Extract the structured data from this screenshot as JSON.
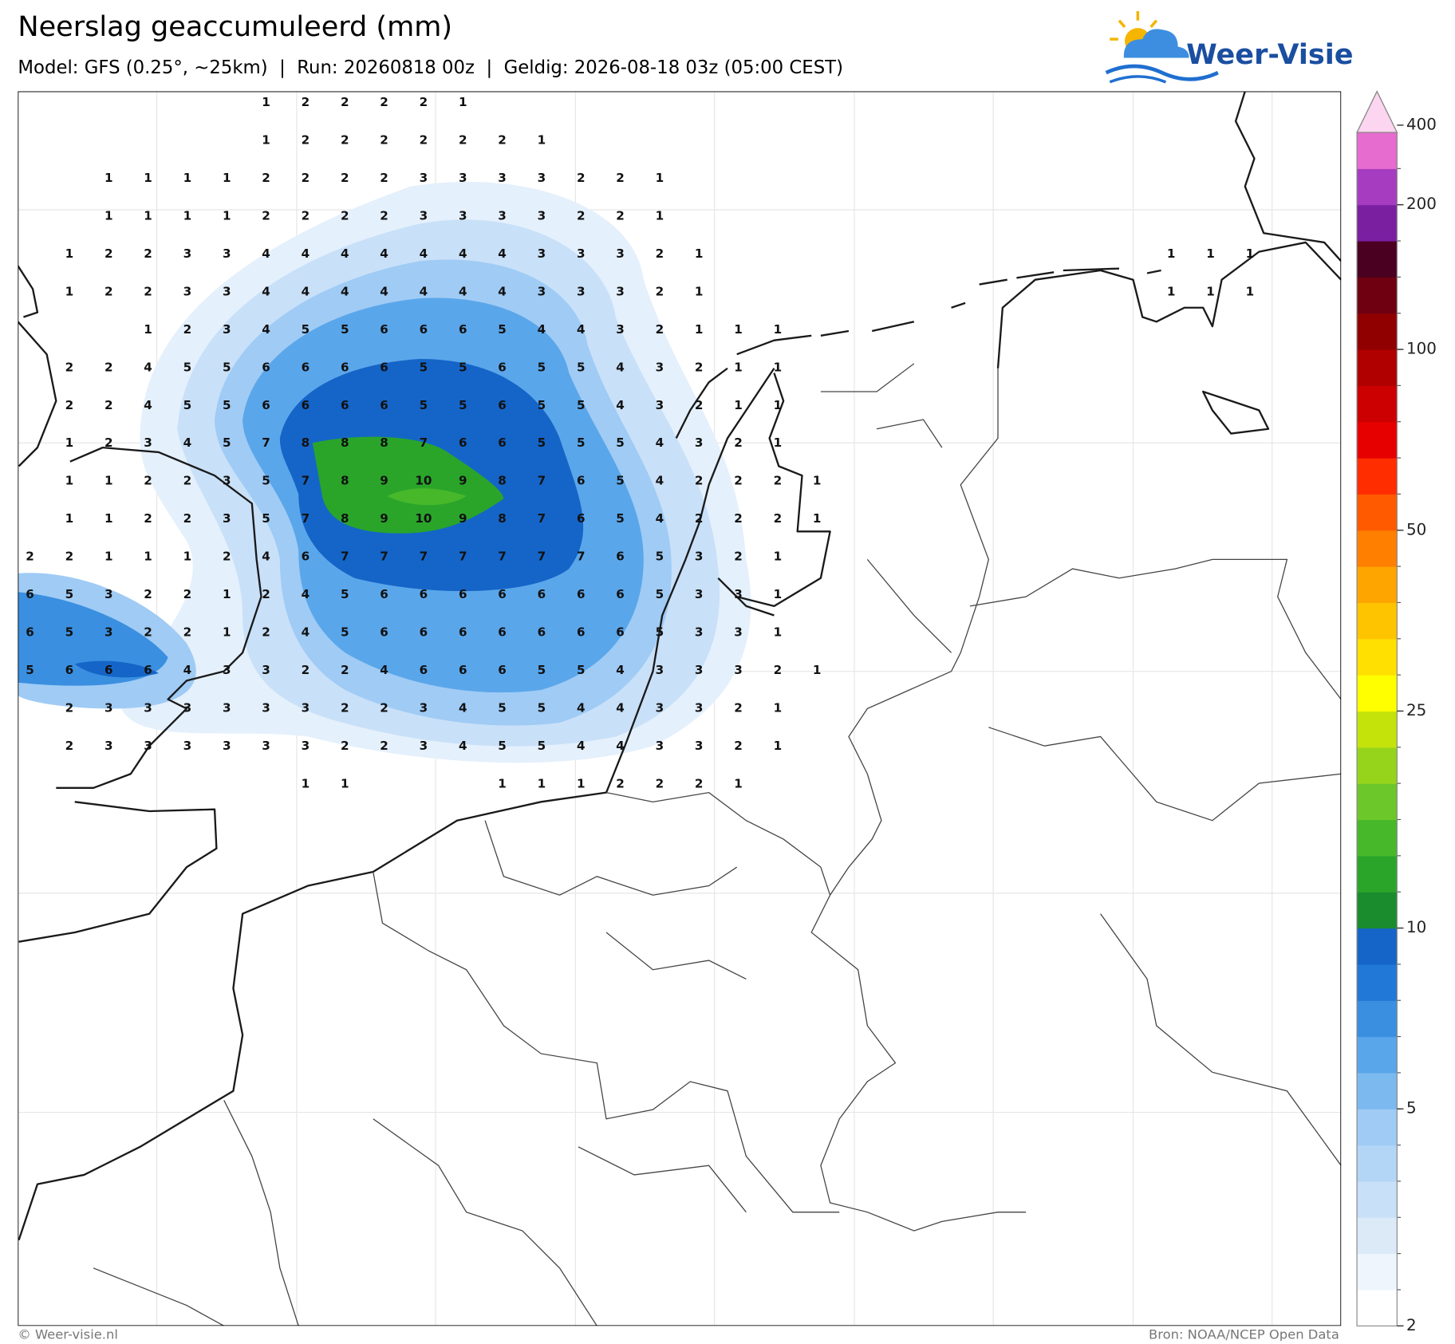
{
  "header": {
    "title": "Neerslag geaccumuleerd (mm)",
    "subtitle": "Model: GFS (0.25°, ~25km)  |  Run: 20260818 00z  |  Geldig: 2026-08-18 03z (05:00 CEST)"
  },
  "logo": {
    "text": "Weer-Visie"
  },
  "map": {
    "grid_rows": [
      [
        null,
        null,
        null,
        null,
        null,
        null,
        1,
        2,
        2,
        2,
        2,
        1
      ],
      [
        null,
        null,
        null,
        null,
        null,
        null,
        1,
        2,
        2,
        2,
        2,
        2,
        2,
        1
      ],
      [
        null,
        null,
        1,
        1,
        1,
        1,
        2,
        2,
        2,
        2,
        3,
        3,
        3,
        3,
        2,
        2,
        1
      ],
      [
        null,
        null,
        1,
        1,
        1,
        1,
        2,
        2,
        2,
        2,
        3,
        3,
        3,
        3,
        2,
        2,
        1
      ],
      [
        null,
        1,
        2,
        2,
        3,
        3,
        4,
        4,
        4,
        4,
        4,
        4,
        4,
        3,
        3,
        3,
        2,
        1,
        null,
        null,
        null,
        null,
        null,
        null,
        null,
        null,
        null,
        null,
        null,
        1,
        1,
        1
      ],
      [
        null,
        1,
        2,
        2,
        3,
        3,
        4,
        4,
        4,
        4,
        4,
        4,
        4,
        3,
        3,
        3,
        2,
        1,
        null,
        null,
        null,
        null,
        null,
        null,
        null,
        null,
        null,
        null,
        null,
        1,
        1,
        1
      ],
      [
        null,
        null,
        null,
        1,
        2,
        3,
        4,
        5,
        5,
        6,
        6,
        6,
        5,
        4,
        4,
        3,
        2,
        1,
        1,
        1
      ],
      [
        null,
        2,
        2,
        4,
        5,
        5,
        6,
        6,
        6,
        6,
        5,
        5,
        6,
        5,
        5,
        4,
        3,
        2,
        1,
        1
      ],
      [
        null,
        2,
        2,
        4,
        5,
        5,
        6,
        6,
        6,
        6,
        5,
        5,
        6,
        5,
        5,
        4,
        3,
        2,
        1,
        1
      ],
      [
        null,
        1,
        2,
        3,
        4,
        5,
        7,
        8,
        8,
        8,
        7,
        6,
        6,
        5,
        5,
        5,
        4,
        3,
        2,
        1
      ],
      [
        null,
        1,
        1,
        2,
        2,
        3,
        5,
        7,
        8,
        9,
        10,
        9,
        8,
        7,
        6,
        5,
        4,
        2,
        2,
        2,
        1
      ],
      [
        null,
        1,
        1,
        2,
        2,
        3,
        5,
        7,
        8,
        9,
        10,
        9,
        8,
        7,
        6,
        5,
        4,
        2,
        2,
        2,
        1
      ],
      [
        2,
        2,
        1,
        1,
        1,
        2,
        4,
        6,
        7,
        7,
        7,
        7,
        7,
        7,
        7,
        6,
        5,
        3,
        2,
        1
      ],
      [
        6,
        5,
        3,
        2,
        2,
        1,
        2,
        4,
        5,
        6,
        6,
        6,
        6,
        6,
        6,
        6,
        5,
        3,
        3,
        1
      ],
      [
        6,
        5,
        3,
        2,
        2,
        1,
        2,
        4,
        5,
        6,
        6,
        6,
        6,
        6,
        6,
        6,
        5,
        3,
        3,
        1
      ],
      [
        5,
        6,
        6,
        6,
        4,
        3,
        3,
        2,
        2,
        4,
        6,
        6,
        6,
        5,
        5,
        4,
        3,
        3,
        3,
        2,
        1
      ],
      [
        null,
        2,
        3,
        3,
        3,
        3,
        3,
        3,
        2,
        2,
        3,
        4,
        5,
        5,
        4,
        4,
        3,
        3,
        2,
        1
      ],
      [
        null,
        2,
        3,
        3,
        3,
        3,
        3,
        3,
        2,
        2,
        3,
        4,
        5,
        5,
        4,
        4,
        3,
        3,
        2,
        1
      ],
      [
        null,
        null,
        null,
        null,
        null,
        null,
        null,
        1,
        1,
        null,
        null,
        null,
        1,
        1,
        1,
        2,
        2,
        2,
        1
      ]
    ]
  },
  "colorbar": {
    "ticks": [
      2,
      5,
      10,
      25,
      50,
      100,
      200,
      400
    ],
    "colors": [
      "#ffffff",
      "#eef5fc",
      "#dceaf8",
      "#c8e0f8",
      "#b4d6f6",
      "#9fcbf5",
      "#7cb9ef",
      "#5aa6ea",
      "#3a8fe0",
      "#2178d6",
      "#1565c8",
      "#1a8c2e",
      "#2aa52a",
      "#47b82a",
      "#6cc72a",
      "#96d41c",
      "#c4e30a",
      "#ffff00",
      "#ffe000",
      "#ffc400",
      "#ffa500",
      "#ff8000",
      "#ff5a00",
      "#ff2d00",
      "#e60000",
      "#cc0000",
      "#b00000",
      "#900000",
      "#6e0012",
      "#4a0020",
      "#7a1fa0",
      "#a63dc0",
      "#e66ccf",
      "#fcd6f0"
    ]
  },
  "footer": {
    "left": "© Weer-visie.nl",
    "right": "Bron: NOAA/NCEP Open Data"
  }
}
